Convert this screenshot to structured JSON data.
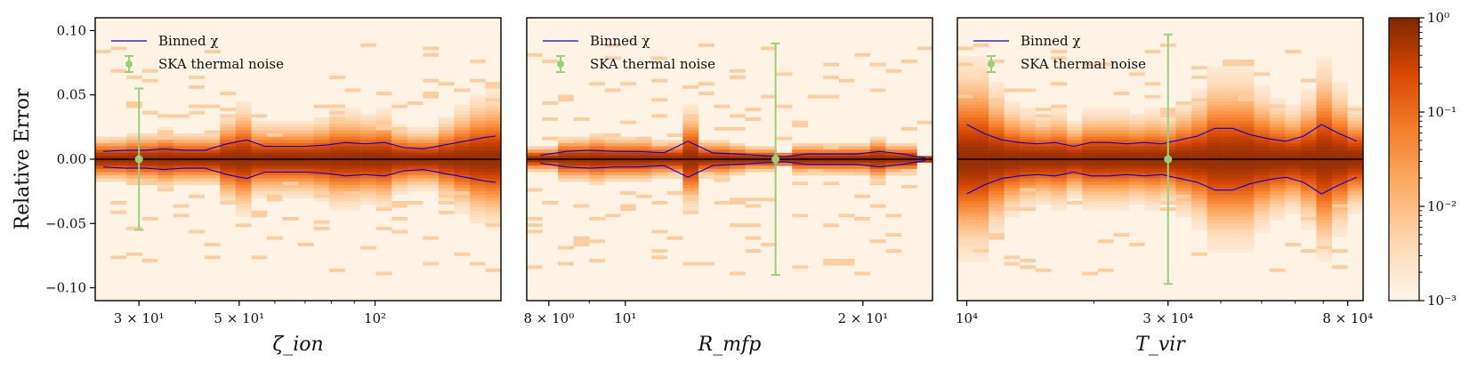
{
  "chart_data": [
    {
      "type": "heatmap",
      "panel": "zeta_ion",
      "xscale": "log",
      "xlim": [
        24,
        190
      ],
      "ylim": [
        -0.11,
        0.11
      ],
      "xlabel": "ζ_ion",
      "ylabel": "Relative Error",
      "xticks": [
        {
          "value": 30,
          "label": "3 × 10¹"
        },
        {
          "value": 50,
          "label": "5 × 10¹"
        },
        {
          "value": 100,
          "label": "10²"
        }
      ],
      "yticks": [
        {
          "value": 0.1,
          "label": "0.10"
        },
        {
          "value": 0.05,
          "label": "0.05"
        },
        {
          "value": 0.0,
          "label": "0.00"
        },
        {
          "value": -0.05,
          "label": "−0.05"
        },
        {
          "value": -0.1,
          "label": "−0.10"
        }
      ],
      "binned_chi": {
        "x": [
          25,
          28,
          31,
          34,
          38,
          42,
          47,
          52,
          57,
          63,
          70,
          78,
          86,
          95,
          105,
          116,
          128,
          142,
          158,
          175,
          185
        ],
        "upper": [
          0.006,
          0.007,
          0.007,
          0.008,
          0.007,
          0.007,
          0.012,
          0.015,
          0.01,
          0.01,
          0.01,
          0.011,
          0.013,
          0.012,
          0.013,
          0.009,
          0.008,
          0.011,
          0.014,
          0.017,
          0.018
        ],
        "lower": [
          -0.006,
          -0.007,
          -0.007,
          -0.008,
          -0.007,
          -0.007,
          -0.012,
          -0.015,
          -0.01,
          -0.01,
          -0.01,
          -0.011,
          -0.013,
          -0.012,
          -0.013,
          -0.009,
          -0.008,
          -0.011,
          -0.014,
          -0.017,
          -0.018
        ]
      },
      "ska_noise": {
        "x": 30,
        "y": 0.0,
        "err": 0.055
      },
      "legend": [
        "Binned χ",
        "SKA thermal noise"
      ]
    },
    {
      "type": "heatmap",
      "panel": "R_mfp",
      "xscale": "log",
      "xlim": [
        7.5,
        24.5
      ],
      "ylim": [
        -0.11,
        0.11
      ],
      "xlabel": "R_mfp",
      "ylabel": "",
      "xticks": [
        {
          "value": 8,
          "label": "8 × 10⁰"
        },
        {
          "value": 10,
          "label": "10¹"
        },
        {
          "value": 20,
          "label": "2 × 10¹"
        }
      ],
      "yticks": [],
      "binned_chi": {
        "x": [
          7.8,
          8.4,
          9.0,
          9.7,
          10.4,
          11.2,
          12.0,
          12.9,
          13.8,
          14.8,
          15.9,
          17.0,
          18.3,
          19.6,
          21.0,
          22.5,
          24.0
        ],
        "upper": [
          0.003,
          0.006,
          0.007,
          0.006,
          0.006,
          0.005,
          0.014,
          0.005,
          0.004,
          0.003,
          0.002,
          0.004,
          0.004,
          0.004,
          0.006,
          0.004,
          0.001
        ],
        "lower": [
          -0.003,
          -0.006,
          -0.007,
          -0.006,
          -0.006,
          -0.005,
          -0.014,
          -0.005,
          -0.004,
          -0.003,
          -0.002,
          -0.004,
          -0.004,
          -0.004,
          -0.006,
          -0.004,
          -0.001
        ]
      },
      "ska_noise": {
        "x": 15.5,
        "y": 0.0,
        "err": 0.09
      },
      "legend": [
        "Binned χ",
        "SKA thermal noise"
      ]
    },
    {
      "type": "heatmap",
      "panel": "T_vir",
      "xscale": "log",
      "xlim": [
        9500,
        87000
      ],
      "ylim": [
        -0.11,
        0.11
      ],
      "xlabel": "T_vir",
      "ylabel": "",
      "xticks": [
        {
          "value": 10000,
          "label": "10⁴"
        },
        {
          "value": 30000,
          "label": "3 × 10⁴"
        },
        {
          "value": 80000,
          "label": "8 × 10⁴"
        }
      ],
      "yticks": [],
      "binned_chi": {
        "x": [
          10000,
          11000,
          12100,
          13300,
          14700,
          16200,
          17900,
          19700,
          21700,
          23900,
          26300,
          29000,
          32000,
          35200,
          38800,
          42700,
          47000,
          51800,
          57100,
          62900,
          69300,
          76300,
          84000
        ],
        "upper": [
          0.027,
          0.02,
          0.015,
          0.013,
          0.012,
          0.013,
          0.01,
          0.013,
          0.013,
          0.012,
          0.013,
          0.012,
          0.015,
          0.018,
          0.024,
          0.024,
          0.019,
          0.016,
          0.014,
          0.018,
          0.027,
          0.02,
          0.014
        ],
        "lower": [
          -0.027,
          -0.02,
          -0.015,
          -0.013,
          -0.012,
          -0.013,
          -0.01,
          -0.013,
          -0.013,
          -0.012,
          -0.013,
          -0.012,
          -0.015,
          -0.018,
          -0.024,
          -0.024,
          -0.019,
          -0.016,
          -0.014,
          -0.018,
          -0.027,
          -0.02,
          -0.014
        ]
      },
      "ska_noise": {
        "x": 30000,
        "y": 0.0,
        "err": 0.097
      },
      "legend": [
        "Binned χ",
        "SKA thermal noise"
      ]
    }
  ],
  "colorbar": {
    "scale": "log",
    "range": [
      0.001,
      1
    ],
    "ticks": [
      {
        "value": 1,
        "label": "10⁰"
      },
      {
        "value": 0.1,
        "label": "10⁻¹"
      },
      {
        "value": 0.01,
        "label": "10⁻²"
      },
      {
        "value": 0.001,
        "label": "10⁻³"
      }
    ],
    "colormap": "Oranges"
  },
  "colors": {
    "binned_chi": "#0000ee",
    "ska_noise": "#98d07a",
    "zero_line": "#000000",
    "background": "#fff3e6"
  }
}
